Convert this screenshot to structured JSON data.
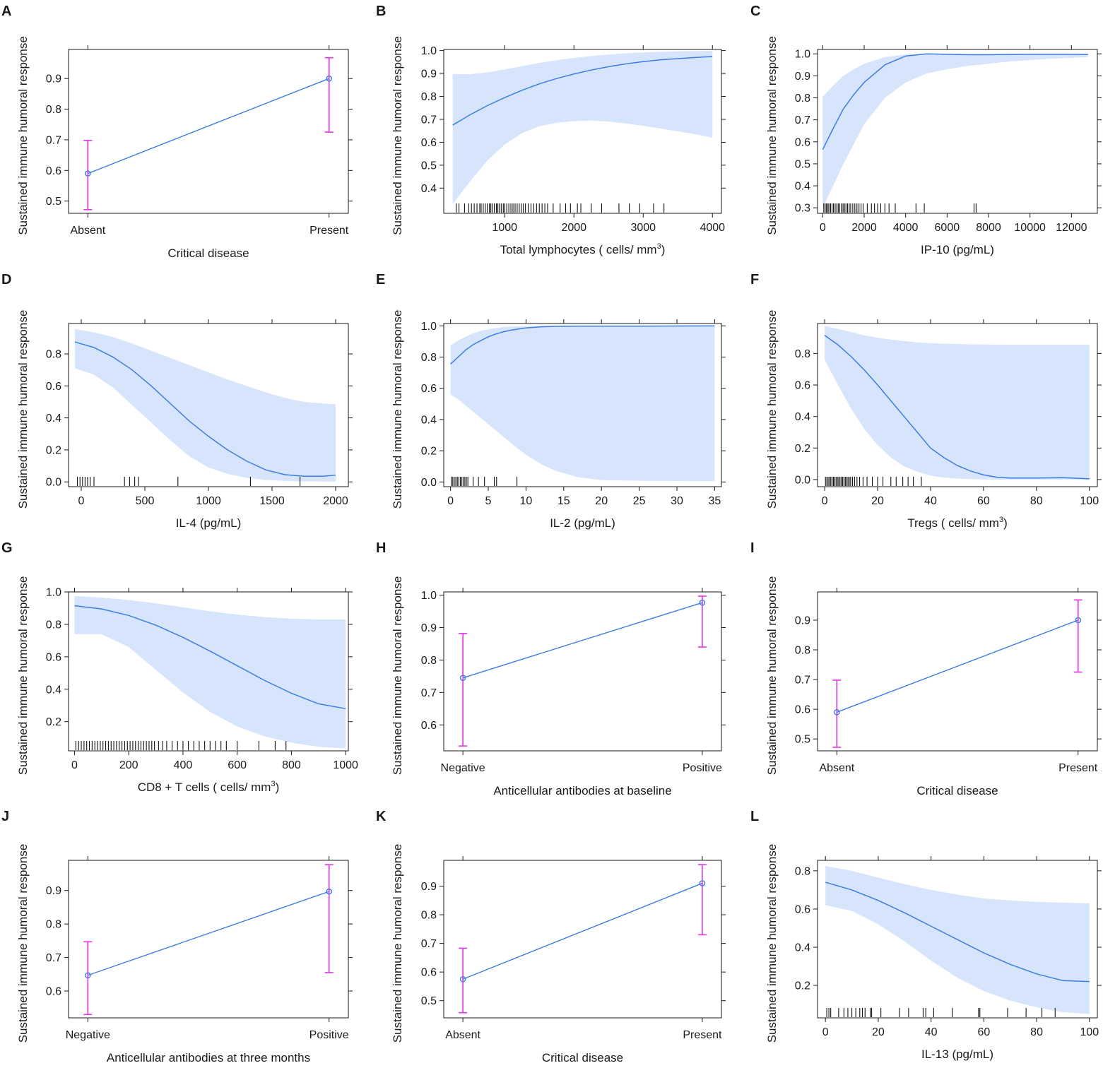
{
  "figure": {
    "colors": {
      "line": "#3b7de0",
      "band": "#d6e5fb",
      "errorbar": "#e633e6",
      "axis": "#1a1a1a",
      "rug": "#111111"
    }
  },
  "chart_data": [
    {
      "panel": "A",
      "type": "line",
      "subtype": "categorical-effect",
      "xlabel": "Critical disease",
      "ylabel": "Sustained immune humoral response",
      "categories": [
        "Absent",
        "Present"
      ],
      "values": [
        0.59,
        0.9
      ],
      "lower": [
        0.472,
        0.725
      ],
      "upper": [
        0.698,
        0.968
      ],
      "ylim": [
        0.46,
        0.995
      ],
      "yticks": [
        0.5,
        0.6,
        0.7,
        0.8,
        0.9
      ]
    },
    {
      "panel": "B",
      "type": "area",
      "subtype": "continuous-effect",
      "xlabel": "Total lymphocytes ( cells/ mm",
      "xlabel_sup": "3",
      "xlabel_end": ")",
      "ylabel": "Sustained immune humoral response",
      "x": [
        250,
        500,
        750,
        1000,
        1250,
        1500,
        1750,
        2000,
        2250,
        2500,
        2750,
        3000,
        3250,
        3500,
        3750,
        4000
      ],
      "y": [
        0.675,
        0.72,
        0.76,
        0.795,
        0.827,
        0.855,
        0.878,
        0.898,
        0.915,
        0.93,
        0.942,
        0.952,
        0.96,
        0.965,
        0.97,
        0.974
      ],
      "lower": [
        0.33,
        0.43,
        0.52,
        0.59,
        0.64,
        0.67,
        0.685,
        0.692,
        0.695,
        0.69,
        0.682,
        0.672,
        0.66,
        0.648,
        0.635,
        0.62
      ],
      "upper": [
        0.897,
        0.897,
        0.905,
        0.918,
        0.932,
        0.946,
        0.958,
        0.968,
        0.976,
        0.983,
        0.988,
        0.992,
        0.995,
        0.997,
        0.998,
        0.999
      ],
      "rug": [
        300,
        340,
        420,
        480,
        520,
        560,
        600,
        640,
        660,
        690,
        720,
        750,
        780,
        800,
        820,
        850,
        880,
        900,
        920,
        950,
        980,
        1000,
        1030,
        1060,
        1090,
        1120,
        1150,
        1180,
        1210,
        1240,
        1270,
        1300,
        1340,
        1380,
        1420,
        1460,
        1500,
        1540,
        1580,
        1620,
        1700,
        1800,
        1880,
        1950,
        2050,
        2100,
        2250,
        2400,
        2650,
        2800,
        2950,
        3150,
        3300
      ],
      "xlim": [
        120,
        4130
      ],
      "ylim": [
        0.29,
        1.005
      ],
      "xticks": [
        1000,
        2000,
        3000,
        4000
      ],
      "yticks": [
        0.4,
        0.5,
        0.6,
        0.7,
        0.8,
        0.9,
        1.0
      ]
    },
    {
      "panel": "C",
      "type": "area",
      "subtype": "continuous-effect",
      "xlabel": "IP-10 (pg/mL)",
      "ylabel": "Sustained immune humoral response",
      "x": [
        0,
        500,
        1000,
        1500,
        2000,
        3000,
        4000,
        5000,
        6000,
        7000,
        8000,
        9000,
        10000,
        11000,
        12000,
        12800
      ],
      "y": [
        0.565,
        0.66,
        0.75,
        0.815,
        0.87,
        0.95,
        0.99,
        1.0,
        0.998,
        0.996,
        0.996,
        0.997,
        0.998,
        0.998,
        0.998,
        0.997
      ],
      "lower": [
        0.3,
        0.4,
        0.5,
        0.59,
        0.68,
        0.8,
        0.87,
        0.91,
        0.93,
        0.945,
        0.955,
        0.965,
        0.972,
        0.978,
        0.982,
        0.985
      ],
      "upper": [
        0.805,
        0.855,
        0.9,
        0.93,
        0.955,
        0.985,
        0.997,
        1.0,
        1.0,
        1.0,
        1.0,
        1.0,
        1.0,
        1.0,
        1.0,
        1.0
      ],
      "rug": [
        50,
        120,
        180,
        250,
        300,
        380,
        450,
        520,
        600,
        680,
        750,
        820,
        900,
        980,
        1050,
        1120,
        1200,
        1280,
        1350,
        1450,
        1550,
        1650,
        1750,
        1850,
        1950,
        2150,
        2350,
        2500,
        2650,
        2800,
        3000,
        3200,
        3500,
        4500,
        4900,
        7300,
        7400
      ],
      "xlim": [
        -250,
        13250
      ],
      "ylim": [
        0.275,
        1.02
      ],
      "xticks": [
        0,
        2000,
        4000,
        6000,
        8000,
        10000,
        12000
      ],
      "yticks": [
        0.3,
        0.4,
        0.5,
        0.6,
        0.7,
        0.8,
        0.9,
        1.0
      ]
    },
    {
      "panel": "D",
      "type": "area",
      "subtype": "continuous-effect",
      "xlabel": "IL-4 (pg/mL)",
      "ylabel": "Sustained immune humoral response",
      "x": [
        -50,
        100,
        250,
        400,
        550,
        700,
        850,
        1000,
        1150,
        1300,
        1450,
        1600,
        1750,
        1900,
        2000
      ],
      "y": [
        0.875,
        0.84,
        0.78,
        0.7,
        0.6,
        0.49,
        0.38,
        0.285,
        0.2,
        0.13,
        0.075,
        0.045,
        0.035,
        0.035,
        0.042
      ],
      "lower": [
        0.71,
        0.67,
        0.59,
        0.48,
        0.37,
        0.26,
        0.16,
        0.09,
        0.05,
        0.025,
        0.012,
        0.006,
        0.003,
        0.002,
        0.002
      ],
      "upper": [
        0.955,
        0.935,
        0.905,
        0.865,
        0.82,
        0.775,
        0.73,
        0.685,
        0.64,
        0.6,
        0.56,
        0.525,
        0.5,
        0.49,
        0.485
      ],
      "rug": [
        -30,
        -10,
        10,
        30,
        50,
        70,
        100,
        340,
        380,
        420,
        450,
        760,
        1330,
        1720
      ],
      "xlim": [
        -100,
        2100
      ],
      "ylim": [
        -0.03,
        0.99
      ],
      "xticks": [
        0,
        500,
        1000,
        1500,
        2000
      ],
      "yticks": [
        0.0,
        0.2,
        0.4,
        0.6,
        0.8
      ]
    },
    {
      "panel": "E",
      "type": "area",
      "subtype": "continuous-effect",
      "xlabel": "IL-2 (pg/mL)",
      "ylabel": "Sustained immune humoral response",
      "x": [
        0,
        1,
        2,
        3,
        4,
        5,
        6,
        7,
        8,
        9,
        10,
        12,
        14,
        17,
        20,
        25,
        30,
        35
      ],
      "y": [
        0.755,
        0.8,
        0.845,
        0.88,
        0.905,
        0.93,
        0.948,
        0.962,
        0.972,
        0.98,
        0.987,
        0.994,
        0.997,
        0.998,
        0.998,
        0.998,
        0.999,
        1.0
      ],
      "lower": [
        0.56,
        0.53,
        0.49,
        0.45,
        0.41,
        0.37,
        0.33,
        0.29,
        0.25,
        0.21,
        0.175,
        0.115,
        0.07,
        0.03,
        0.012,
        0.008,
        0.006,
        0.005
      ],
      "upper": [
        0.875,
        0.905,
        0.93,
        0.952,
        0.968,
        0.978,
        0.986,
        0.992,
        0.995,
        0.997,
        0.998,
        0.999,
        1.0,
        1.0,
        1.0,
        1.0,
        1.0,
        1.0
      ],
      "rug": [
        0.1,
        0.3,
        0.5,
        0.7,
        0.9,
        1.1,
        1.3,
        1.5,
        1.7,
        1.9,
        2.1,
        2.3,
        3.0,
        3.7,
        4.5,
        5.8,
        6.1,
        8.8
      ],
      "xlim": [
        -0.9,
        35.9
      ],
      "ylim": [
        -0.03,
        1.015
      ],
      "xticks": [
        0,
        5,
        10,
        15,
        20,
        25,
        30,
        35
      ],
      "yticks": [
        0.0,
        0.2,
        0.4,
        0.6,
        0.8,
        1.0
      ]
    },
    {
      "panel": "F",
      "type": "area",
      "subtype": "continuous-effect",
      "xlabel": "Tregs ( cells/ mm",
      "xlabel_sup": "3",
      "xlabel_end": ")",
      "ylabel": "Sustained immune humoral response",
      "x": [
        0,
        5,
        10,
        15,
        20,
        25,
        30,
        35,
        40,
        45,
        50,
        55,
        60,
        65,
        70,
        80,
        90,
        100
      ],
      "y": [
        0.915,
        0.855,
        0.78,
        0.695,
        0.6,
        0.5,
        0.4,
        0.3,
        0.2,
        0.14,
        0.09,
        0.055,
        0.03,
        0.015,
        0.01,
        0.01,
        0.012,
        0.005
      ],
      "lower": [
        0.76,
        0.6,
        0.45,
        0.32,
        0.22,
        0.14,
        0.085,
        0.05,
        0.025,
        0.012,
        0.006,
        0.003,
        0.001,
        0.0,
        0.0,
        0.0,
        0.0,
        0.0
      ],
      "upper": [
        0.975,
        0.955,
        0.935,
        0.915,
        0.9,
        0.888,
        0.878,
        0.87,
        0.865,
        0.862,
        0.86,
        0.858,
        0.857,
        0.856,
        0.855,
        0.855,
        0.855,
        0.855
      ],
      "rug": [
        0.3,
        0.8,
        1.3,
        1.8,
        2.3,
        2.8,
        3.3,
        3.8,
        4.3,
        4.8,
        5.3,
        5.8,
        6.3,
        6.8,
        7.3,
        7.8,
        8.3,
        8.8,
        9.3,
        9.8,
        10.5,
        11.3,
        12.2,
        13.2,
        14.5,
        16,
        18,
        20,
        22,
        25,
        27,
        29.5,
        31.5,
        33.5,
        36.5
      ],
      "xlim": [
        -2.7,
        103
      ],
      "ylim": [
        -0.045,
        0.99
      ],
      "xticks": [
        0,
        20,
        40,
        60,
        80,
        100
      ],
      "yticks": [
        0.0,
        0.2,
        0.4,
        0.6,
        0.8
      ]
    },
    {
      "panel": "G",
      "type": "area",
      "subtype": "continuous-effect",
      "xlabel": "CD8 +  T cells ( cells/ mm",
      "xlabel_sup": "3",
      "xlabel_end": ")",
      "ylabel": "Sustained immune humoral response",
      "x": [
        0,
        100,
        200,
        300,
        400,
        500,
        600,
        700,
        800,
        900,
        1000
      ],
      "y": [
        0.915,
        0.895,
        0.855,
        0.795,
        0.72,
        0.635,
        0.545,
        0.455,
        0.375,
        0.31,
        0.28
      ],
      "lower": [
        0.74,
        0.74,
        0.66,
        0.52,
        0.38,
        0.26,
        0.17,
        0.11,
        0.07,
        0.045,
        0.035
      ],
      "upper": [
        0.975,
        0.965,
        0.95,
        0.93,
        0.905,
        0.88,
        0.86,
        0.845,
        0.835,
        0.83,
        0.83
      ],
      "rug": [
        5,
        15,
        25,
        35,
        45,
        55,
        65,
        75,
        85,
        95,
        105,
        115,
        125,
        135,
        145,
        155,
        165,
        175,
        185,
        195,
        205,
        215,
        225,
        235,
        245,
        255,
        265,
        275,
        285,
        295,
        310,
        325,
        340,
        360,
        380,
        400,
        420,
        440,
        460,
        480,
        500,
        520,
        540,
        560,
        600,
        680,
        740,
        780
      ],
      "xlim": [
        -22,
        1010
      ],
      "ylim": [
        0.02,
        1.0
      ],
      "xticks": [
        0,
        200,
        400,
        600,
        800,
        1000
      ],
      "yticks": [
        0.2,
        0.4,
        0.6,
        0.8,
        1.0
      ]
    },
    {
      "panel": "H",
      "type": "line",
      "subtype": "categorical-effect",
      "xlabel": "Anticellular antibodies at baseline",
      "ylabel": "Sustained immune humoral response",
      "categories": [
        "Negative",
        "Positive"
      ],
      "values": [
        0.745,
        0.977
      ],
      "lower": [
        0.535,
        0.84
      ],
      "upper": [
        0.882,
        0.997
      ],
      "ylim": [
        0.52,
        1.01
      ],
      "yticks": [
        0.6,
        0.7,
        0.8,
        0.9,
        1.0
      ]
    },
    {
      "panel": "I",
      "type": "line",
      "subtype": "categorical-effect",
      "xlabel": "Critical disease",
      "ylabel": "Sustained immune humoral response",
      "categories": [
        "Absent",
        "Present"
      ],
      "values": [
        0.59,
        0.9
      ],
      "lower": [
        0.472,
        0.725
      ],
      "upper": [
        0.698,
        0.968
      ],
      "ylim": [
        0.46,
        0.995
      ],
      "yticks": [
        0.5,
        0.6,
        0.7,
        0.8,
        0.9
      ]
    },
    {
      "panel": "J",
      "type": "line",
      "subtype": "categorical-effect",
      "xlabel": "Anticellular antibodies at three months",
      "ylabel": "Sustained immune humoral response",
      "categories": [
        "Negative",
        "Positive"
      ],
      "values": [
        0.647,
        0.897
      ],
      "lower": [
        0.53,
        0.655
      ],
      "upper": [
        0.747,
        0.977
      ],
      "ylim": [
        0.52,
        0.99
      ],
      "yticks": [
        0.6,
        0.7,
        0.8,
        0.9
      ]
    },
    {
      "panel": "K",
      "type": "line",
      "subtype": "categorical-effect",
      "xlabel": "Critical disease",
      "ylabel": "Sustained immune humoral response",
      "categories": [
        "Absent",
        "Present"
      ],
      "values": [
        0.575,
        0.91
      ],
      "lower": [
        0.458,
        0.73
      ],
      "upper": [
        0.683,
        0.975
      ],
      "ylim": [
        0.44,
        0.99
      ],
      "yticks": [
        0.5,
        0.6,
        0.7,
        0.8,
        0.9
      ]
    },
    {
      "panel": "L",
      "type": "area",
      "subtype": "continuous-effect",
      "xlabel": "IL-13 (pg/mL)",
      "ylabel": "Sustained immune humoral response",
      "x": [
        0,
        10,
        20,
        30,
        40,
        50,
        60,
        70,
        80,
        90,
        100
      ],
      "y": [
        0.74,
        0.7,
        0.645,
        0.58,
        0.51,
        0.44,
        0.37,
        0.31,
        0.26,
        0.225,
        0.22
      ],
      "lower": [
        0.62,
        0.59,
        0.52,
        0.43,
        0.33,
        0.24,
        0.17,
        0.12,
        0.085,
        0.06,
        0.05
      ],
      "upper": [
        0.825,
        0.8,
        0.765,
        0.73,
        0.7,
        0.675,
        0.655,
        0.645,
        0.637,
        0.633,
        0.63
      ],
      "rug": [
        0.5,
        1.3,
        2,
        5,
        7,
        8.5,
        10,
        11.5,
        13,
        14,
        15,
        17,
        17.5,
        21,
        28,
        31.5,
        37,
        38,
        41,
        48,
        58,
        58.5,
        69,
        76,
        82,
        87
      ],
      "xlim": [
        -3,
        103
      ],
      "ylim": [
        0.03,
        0.855
      ],
      "xticks": [
        0,
        20,
        40,
        60,
        80,
        100
      ],
      "yticks": [
        0.2,
        0.4,
        0.6,
        0.8
      ]
    }
  ]
}
